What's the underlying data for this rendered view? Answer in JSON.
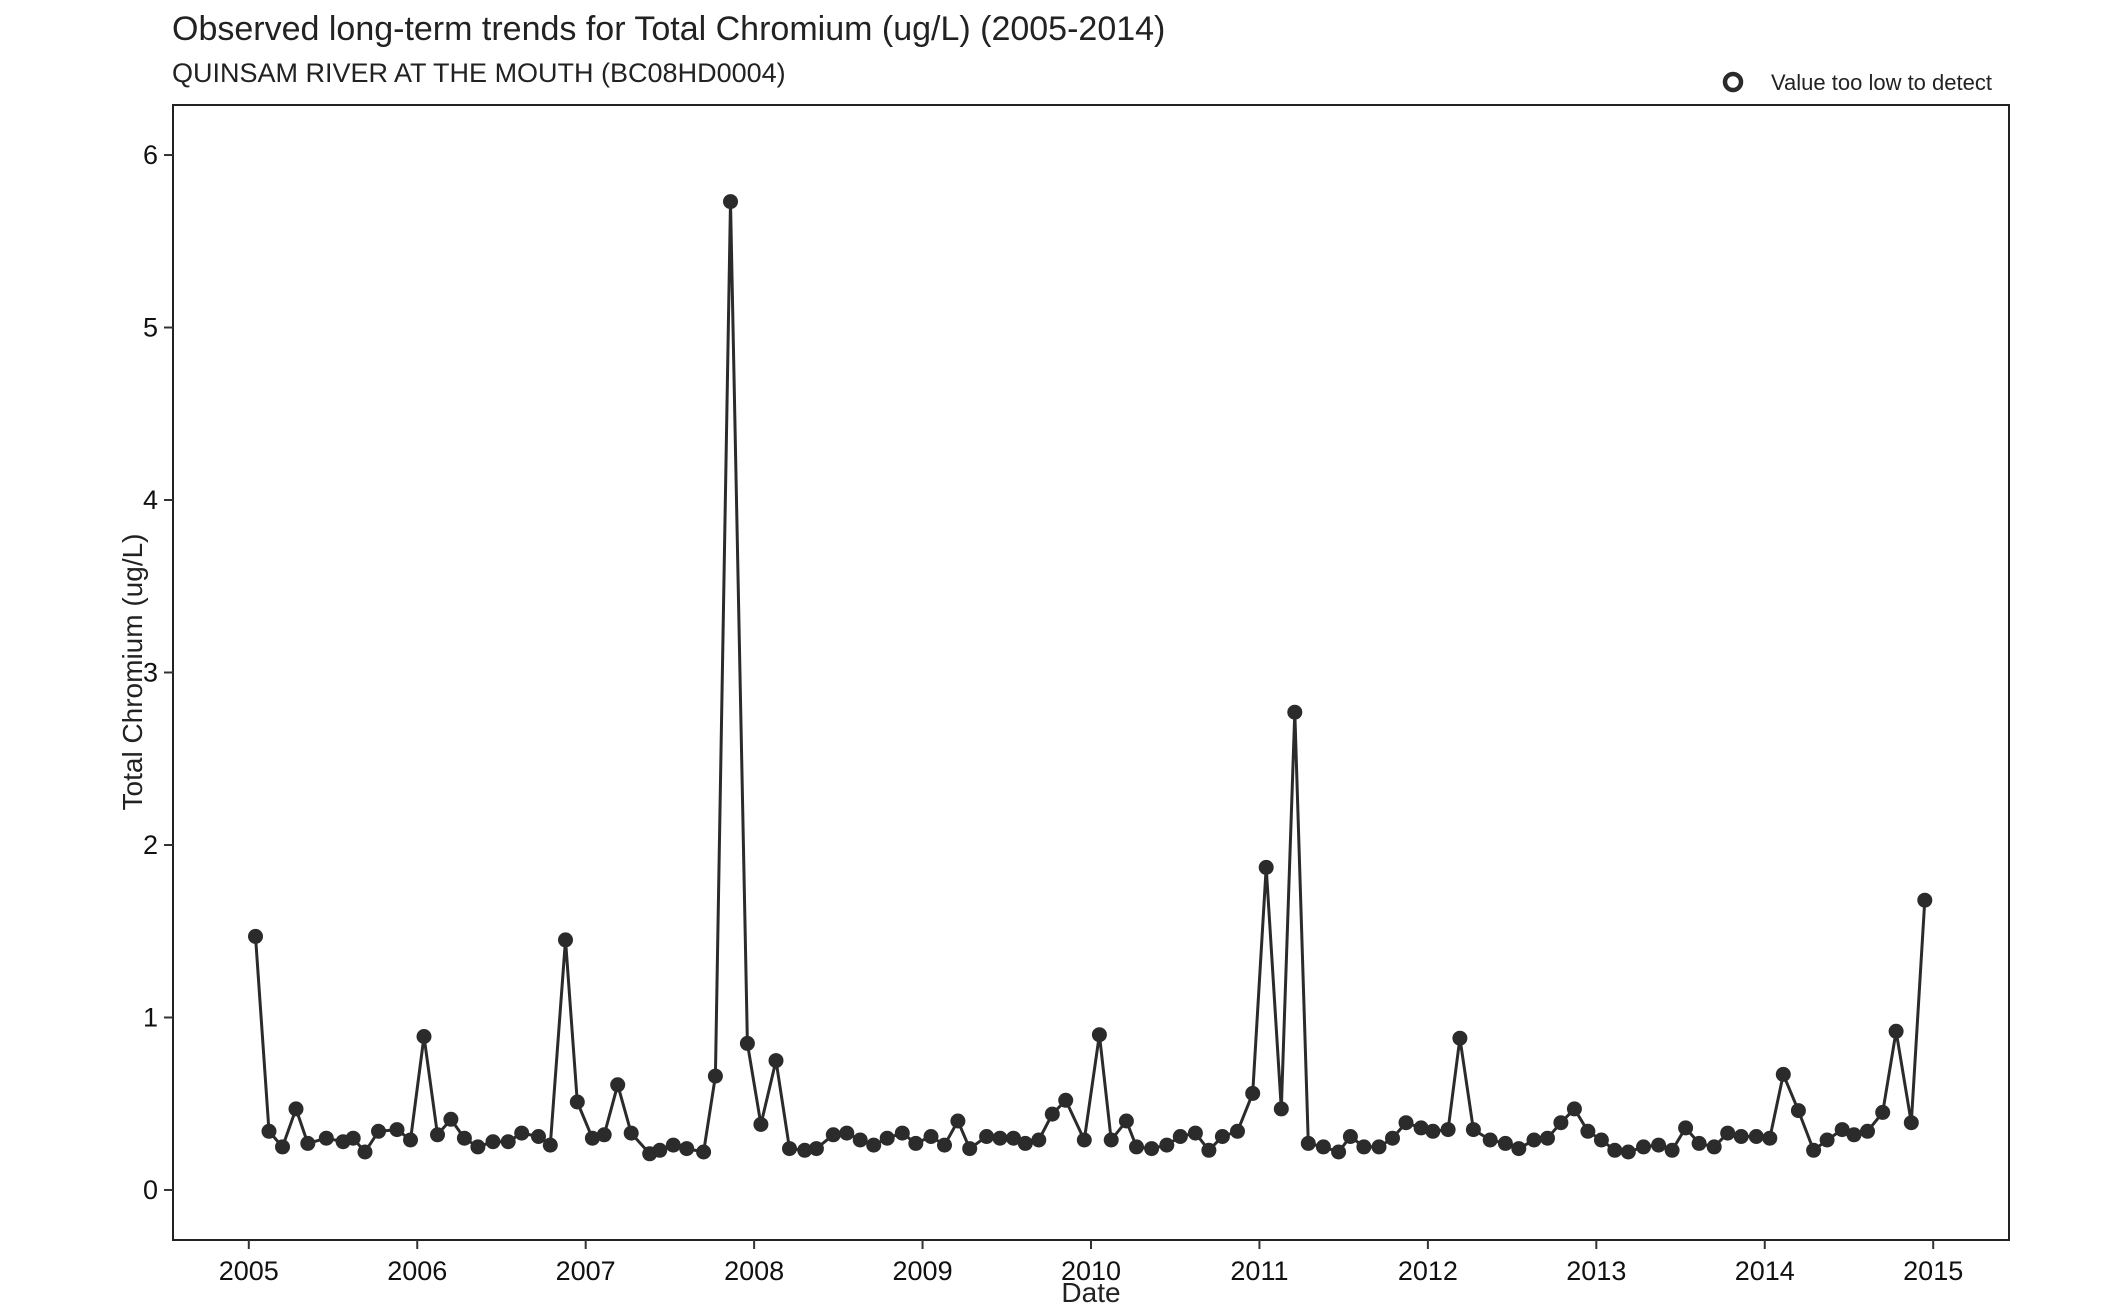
{
  "chart_data": {
    "type": "line",
    "title": "Observed long-term trends for Total Chromium (ug/L) (2005-2014)",
    "subtitle": "QUINSAM RIVER AT THE MOUTH (BC08HD0004)",
    "xlabel": "Date",
    "ylabel": "Total Chromium (ug/L)",
    "xlim": [
      2004.55,
      2015.45
    ],
    "ylim": [
      -0.29,
      6.29
    ],
    "x_ticks": [
      "2005",
      "2006",
      "2007",
      "2008",
      "2009",
      "2010",
      "2011",
      "2012",
      "2013",
      "2014",
      "2015"
    ],
    "y_ticks": [
      "0",
      "1",
      "2",
      "3",
      "4",
      "5",
      "6"
    ],
    "grid": false,
    "legend": {
      "position": "top-right",
      "label": "Value too low to detect",
      "marker": "open-circle"
    },
    "colors": {
      "series": "#2b2b2b",
      "background": "#ffffff",
      "frame": "#222222"
    },
    "series": [
      {
        "x": [
          2005.04,
          2005.12,
          2005.2,
          2005.28,
          2005.35,
          2005.46,
          2005.56,
          2005.62,
          2005.69,
          2005.77,
          2005.88,
          2005.96,
          2006.04,
          2006.12,
          2006.2,
          2006.28,
          2006.36,
          2006.45,
          2006.54,
          2006.62,
          2006.72,
          2006.79,
          2006.88,
          2006.95,
          2007.04,
          2007.11,
          2007.19,
          2007.27,
          2007.38,
          2007.44,
          2007.52,
          2007.6,
          2007.7,
          2007.77,
          2007.86,
          2007.96,
          2008.04,
          2008.13,
          2008.21,
          2008.3,
          2008.37,
          2008.47,
          2008.55,
          2008.63,
          2008.71,
          2008.79,
          2008.88,
          2008.96,
          2009.05,
          2009.13,
          2009.21,
          2009.28,
          2009.38,
          2009.46,
          2009.54,
          2009.61,
          2009.69,
          2009.77,
          2009.85,
          2009.96,
          2010.05,
          2010.12,
          2010.21,
          2010.27,
          2010.36,
          2010.45,
          2010.53,
          2010.62,
          2010.7,
          2010.78,
          2010.87,
          2010.96,
          2011.04,
          2011.13,
          2011.21,
          2011.29,
          2011.38,
          2011.47,
          2011.54,
          2011.62,
          2011.71,
          2011.79,
          2011.87,
          2011.96,
          2012.03,
          2012.12,
          2012.19,
          2012.27,
          2012.37,
          2012.46,
          2012.54,
          2012.63,
          2012.71,
          2012.79,
          2012.87,
          2012.95,
          2013.03,
          2013.11,
          2013.19,
          2013.28,
          2013.37,
          2013.45,
          2013.53,
          2013.61,
          2013.7,
          2013.78,
          2013.86,
          2013.95,
          2014.03,
          2014.11,
          2014.2,
          2014.29,
          2014.37,
          2014.46,
          2014.53,
          2014.61,
          2014.7,
          2014.78,
          2014.87,
          2014.95
        ],
        "y": [
          1.47,
          0.34,
          0.25,
          0.47,
          0.27,
          0.3,
          0.28,
          0.3,
          0.22,
          0.34,
          0.35,
          0.29,
          0.89,
          0.32,
          0.41,
          0.3,
          0.25,
          0.28,
          0.28,
          0.33,
          0.31,
          0.26,
          1.45,
          0.51,
          0.3,
          0.32,
          0.61,
          0.33,
          0.21,
          0.23,
          0.26,
          0.24,
          0.22,
          0.66,
          5.73,
          0.85,
          0.38,
          0.75,
          0.24,
          0.23,
          0.24,
          0.32,
          0.33,
          0.29,
          0.26,
          0.3,
          0.33,
          0.27,
          0.31,
          0.26,
          0.4,
          0.24,
          0.31,
          0.3,
          0.3,
          0.27,
          0.29,
          0.44,
          0.52,
          0.29,
          0.9,
          0.29,
          0.4,
          0.25,
          0.24,
          0.26,
          0.31,
          0.33,
          0.23,
          0.31,
          0.34,
          0.56,
          1.87,
          0.47,
          2.77,
          0.27,
          0.25,
          0.22,
          0.31,
          0.25,
          0.25,
          0.3,
          0.39,
          0.36,
          0.34,
          0.35,
          0.88,
          0.35,
          0.29,
          0.27,
          0.24,
          0.29,
          0.3,
          0.39,
          0.47,
          0.34,
          0.29,
          0.23,
          0.22,
          0.25,
          0.26,
          0.23,
          0.36,
          0.27,
          0.25,
          0.33,
          0.31,
          0.31,
          0.3,
          0.67,
          0.46,
          0.23,
          0.29,
          0.35,
          0.32,
          0.34,
          0.45,
          0.92,
          0.39,
          1.68
        ]
      }
    ]
  }
}
